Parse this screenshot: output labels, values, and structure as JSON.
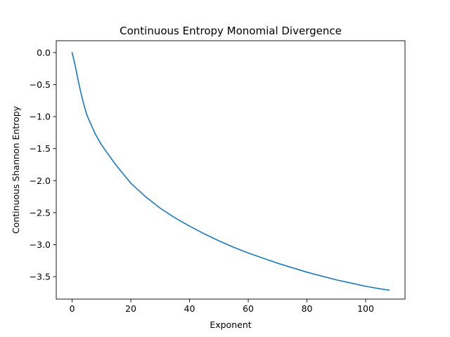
{
  "chart_data": {
    "type": "line",
    "title": "Continuous Entropy Monomial Divergence",
    "xlabel": "Exponent",
    "ylabel": "Continuous Shannon Entropy",
    "xlim": [
      -5.4,
      113.4
    ],
    "ylim": [
      -3.85,
      0.185
    ],
    "x_ticks": [
      0,
      20,
      40,
      60,
      80,
      100
    ],
    "x_tick_labels": [
      "0",
      "20",
      "40",
      "60",
      "80",
      "100"
    ],
    "y_ticks": [
      0.0,
      -0.5,
      -1.0,
      -1.5,
      -2.0,
      -2.5,
      -3.0,
      -3.5
    ],
    "y_tick_labels": [
      "0.0",
      "−0.5",
      "−1.0",
      "−1.5",
      "−2.0",
      "−2.5",
      "−3.0",
      "−3.5"
    ],
    "grid": false,
    "legend": false,
    "series": [
      {
        "color": "#1f77b4",
        "x": [
          0,
          1,
          2,
          3,
          4,
          5,
          6,
          8,
          10,
          12,
          15,
          20,
          25,
          30,
          35,
          40,
          45,
          50,
          55,
          60,
          65,
          70,
          75,
          80,
          85,
          90,
          95,
          100,
          105,
          108
        ],
        "y": [
          0.0,
          -0.19,
          -0.42,
          -0.63,
          -0.81,
          -0.97,
          -1.08,
          -1.28,
          -1.44,
          -1.57,
          -1.76,
          -2.04,
          -2.25,
          -2.43,
          -2.58,
          -2.71,
          -2.83,
          -2.94,
          -3.04,
          -3.13,
          -3.21,
          -3.29,
          -3.36,
          -3.43,
          -3.49,
          -3.55,
          -3.6,
          -3.65,
          -3.69,
          -3.71
        ]
      }
    ]
  }
}
